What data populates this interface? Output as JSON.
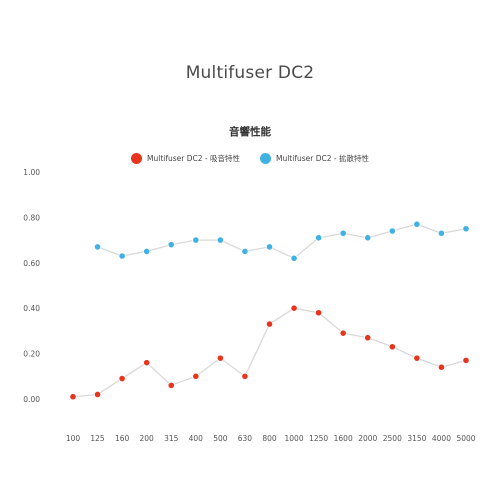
{
  "page": {
    "title": "Multifuser DC2"
  },
  "chart_data": {
    "type": "line",
    "title": "音響性能",
    "xlabel": "",
    "ylabel": "",
    "ylim": [
      0,
      1
    ],
    "yticks": [
      "0.00",
      "0.20",
      "0.40",
      "0.60",
      "0.80",
      "1.00"
    ],
    "categories": [
      "100",
      "125",
      "160",
      "200",
      "315",
      "400",
      "500",
      "630",
      "800",
      "1000",
      "1250",
      "1600",
      "2000",
      "2500",
      "3150",
      "4000",
      "5000"
    ],
    "legend_position": "top",
    "grid": false,
    "series": [
      {
        "name": "Multifuser DC2 - 吸音特性",
        "color": "#e8341c",
        "values": [
          0.01,
          0.02,
          0.09,
          0.16,
          0.06,
          0.1,
          0.18,
          0.1,
          0.33,
          0.4,
          0.38,
          0.29,
          0.27,
          0.23,
          0.18,
          0.14,
          0.17
        ]
      },
      {
        "name": "Multifuser DC2 - 拡散特性",
        "color": "#3fb1e3",
        "values": [
          null,
          0.67,
          0.63,
          0.65,
          0.68,
          0.7,
          0.7,
          0.65,
          0.67,
          0.62,
          0.71,
          0.73,
          0.71,
          0.74,
          0.77,
          0.73,
          0.75
        ]
      }
    ]
  }
}
